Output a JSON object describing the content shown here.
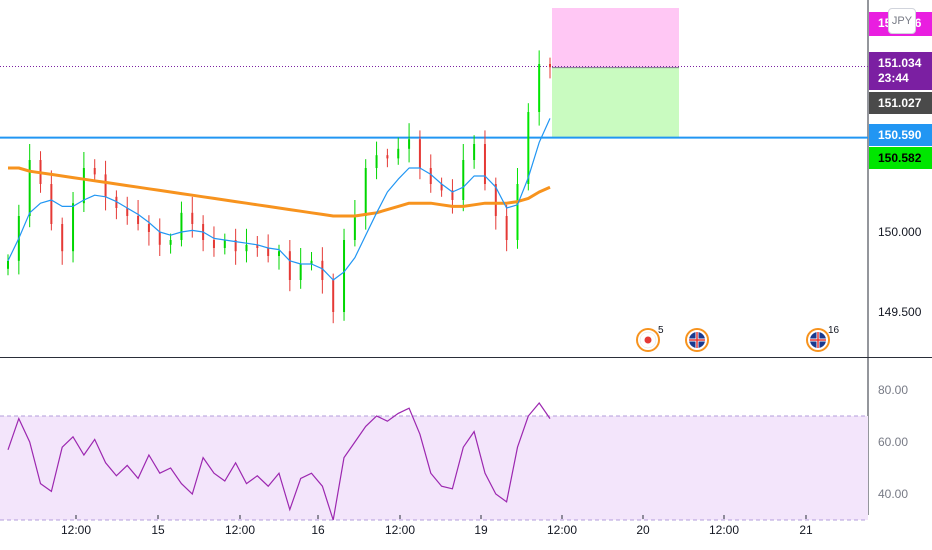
{
  "symbol_badge": "JPY",
  "price_tags": {
    "top": {
      "text": "151.036",
      "bg": "#e91ee0",
      "fg": "#ffffff"
    },
    "last": {
      "price": "151.034",
      "countdown": "23:44",
      "bg": "#7b1fa2",
      "fg": "#ffffff"
    },
    "prev": {
      "text": "151.027",
      "bg": "#4a4a4a",
      "fg": "#ffffff"
    },
    "line": {
      "text": "150.590",
      "bg": "#2196f3",
      "fg": "#ffffff"
    },
    "green": {
      "text": "150.582",
      "bg": "#00e600",
      "fg": "#000000"
    }
  },
  "event_icons": [
    {
      "name": "japan-flag-icon",
      "count": "5"
    },
    {
      "name": "uk-flag-icon",
      "count": ""
    },
    {
      "name": "uk-flag-icon",
      "count": "16"
    }
  ],
  "colors": {
    "up": "#26a69a",
    "up_bright": "#00e600",
    "down": "#e53935",
    "ma_fast": "#2196f3",
    "ma_slow": "#f7931e",
    "rsi": "#9c27b0",
    "rsi_band": "#f3e5fb",
    "stop_zone": "#ffc7f4",
    "target_zone": "#c9fbc0"
  },
  "chart_data": [
    {
      "type": "candlestick",
      "price_axis_labels": [
        "150.000",
        "149.500"
      ],
      "ylim": [
        149.35,
        151.2
      ],
      "time_axis_labels": [
        "12:00",
        "15",
        "12:00",
        "16",
        "12:00",
        "19",
        "12:00",
        "20",
        "12:00",
        "21"
      ],
      "key_levels": {
        "horizontal_line": 150.59,
        "last": 151.034
      },
      "position": {
        "entry": 151.027,
        "stop": 151.4,
        "target": 150.59
      },
      "series": [
        {
          "kind": "candles",
          "close": [
            149.82,
            150.1,
            150.45,
            150.3,
            150.05,
            149.88,
            150.18,
            150.4,
            150.36,
            150.22,
            150.15,
            150.1,
            150.05,
            150.0,
            149.92,
            149.95,
            150.12,
            150.05,
            149.95,
            149.9,
            149.95,
            149.88,
            149.92,
            149.9,
            149.85,
            149.88,
            149.7,
            149.8,
            149.82,
            149.7,
            149.5,
            149.95,
            150.1,
            150.4,
            150.48,
            150.46,
            150.52,
            150.58,
            150.4,
            150.3,
            150.26,
            150.2,
            150.45,
            150.55,
            150.3,
            150.1,
            149.95,
            150.3,
            150.75,
            151.05,
            151.03
          ]
        },
        {
          "kind": "ma",
          "name": "",
          "values": [
            149.82,
            149.96,
            150.12,
            150.18,
            150.2,
            150.16,
            150.16,
            150.2,
            150.23,
            150.22,
            150.19,
            150.15,
            150.11,
            150.06,
            150.0,
            149.98,
            150.0,
            150.01,
            150.0,
            149.96,
            149.95,
            149.94,
            149.93,
            149.92,
            149.9,
            149.89,
            149.82,
            149.8,
            149.8,
            149.77,
            149.7,
            149.75,
            149.84,
            149.98,
            150.12,
            150.25,
            150.33,
            150.4,
            150.4,
            150.36,
            150.3,
            150.25,
            150.28,
            150.35,
            150.35,
            150.28,
            150.15,
            150.17,
            150.34,
            150.56,
            150.71
          ]
        },
        {
          "kind": "ma",
          "name": "",
          "values": [
            150.4,
            150.4,
            150.38,
            150.37,
            150.36,
            150.35,
            150.34,
            150.33,
            150.32,
            150.31,
            150.3,
            150.29,
            150.28,
            150.27,
            150.26,
            150.25,
            150.24,
            150.23,
            150.22,
            150.21,
            150.2,
            150.19,
            150.18,
            150.17,
            150.16,
            150.15,
            150.14,
            150.13,
            150.12,
            150.11,
            150.1,
            150.1,
            150.1,
            150.11,
            150.12,
            150.14,
            150.16,
            150.18,
            150.18,
            150.18,
            150.17,
            150.16,
            150.16,
            150.17,
            150.18,
            150.18,
            150.18,
            150.19,
            150.21,
            150.25,
            150.28
          ]
        }
      ]
    },
    {
      "type": "line",
      "name": "RSI",
      "y_axis_labels": [
        "80.00",
        "60.00",
        "40.00"
      ],
      "ylim": [
        22,
        83
      ],
      "band": [
        30,
        70
      ],
      "values": [
        57,
        69,
        60,
        44,
        41,
        58,
        62,
        55,
        61,
        52,
        47,
        51,
        46,
        55,
        48,
        50,
        44,
        40,
        54,
        48,
        45,
        52,
        44,
        47,
        43,
        48,
        34,
        46,
        48,
        43,
        30,
        54,
        60,
        66,
        70,
        68,
        71,
        73,
        63,
        48,
        43,
        42,
        58,
        64,
        48,
        40,
        37,
        58,
        70,
        75,
        69
      ]
    }
  ]
}
